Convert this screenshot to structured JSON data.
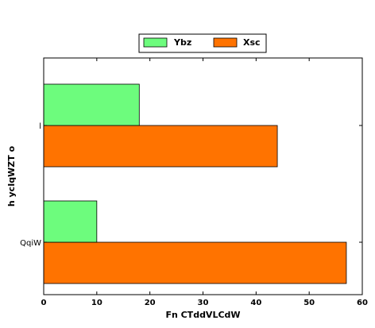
{
  "chart_data": {
    "type": "bar",
    "orientation": "horizontal",
    "categories": [
      "QqiW",
      "l"
    ],
    "series": [
      {
        "name": "Ybz",
        "values": [
          10,
          18
        ],
        "color": "#6dfc7d"
      },
      {
        "name": "Xsc",
        "values": [
          57,
          44
        ],
        "color": "#ff7300"
      }
    ],
    "xlabel": "Fn CTddVLCdW",
    "ylabel": "h ycIqWZT o",
    "xlim": [
      0,
      60
    ],
    "xticks": [
      0,
      10,
      20,
      30,
      40,
      50,
      60
    ],
    "grid": false,
    "legend_position": "top-center"
  }
}
